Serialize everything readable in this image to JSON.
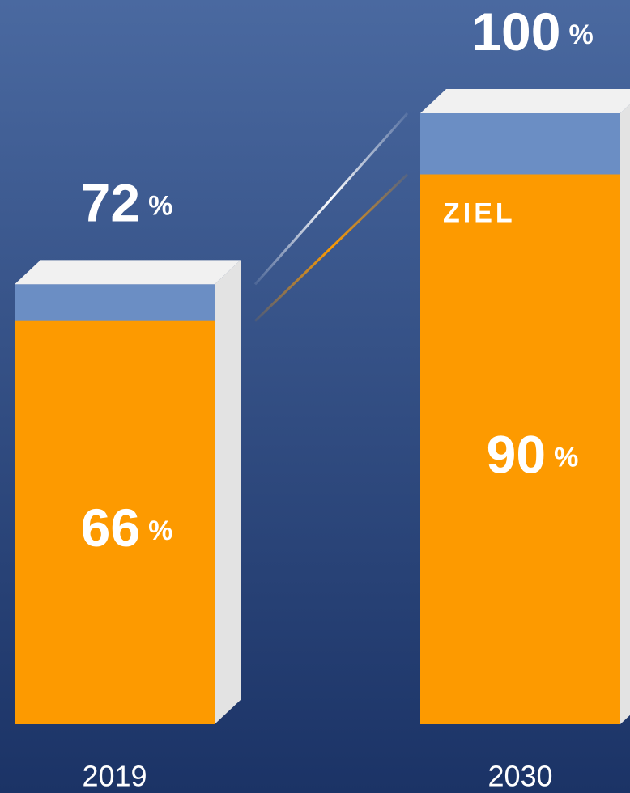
{
  "chart_data": {
    "type": "bar",
    "categories": [
      "2019",
      "2030"
    ],
    "series": [
      {
        "color": "#6b8ec4",
        "values": [
          72,
          100
        ]
      },
      {
        "color": "#fd9a00",
        "values": [
          66,
          90
        ]
      }
    ],
    "value_unit": "%",
    "annotation": "ZIEL",
    "ylim": [
      0,
      100
    ]
  }
}
